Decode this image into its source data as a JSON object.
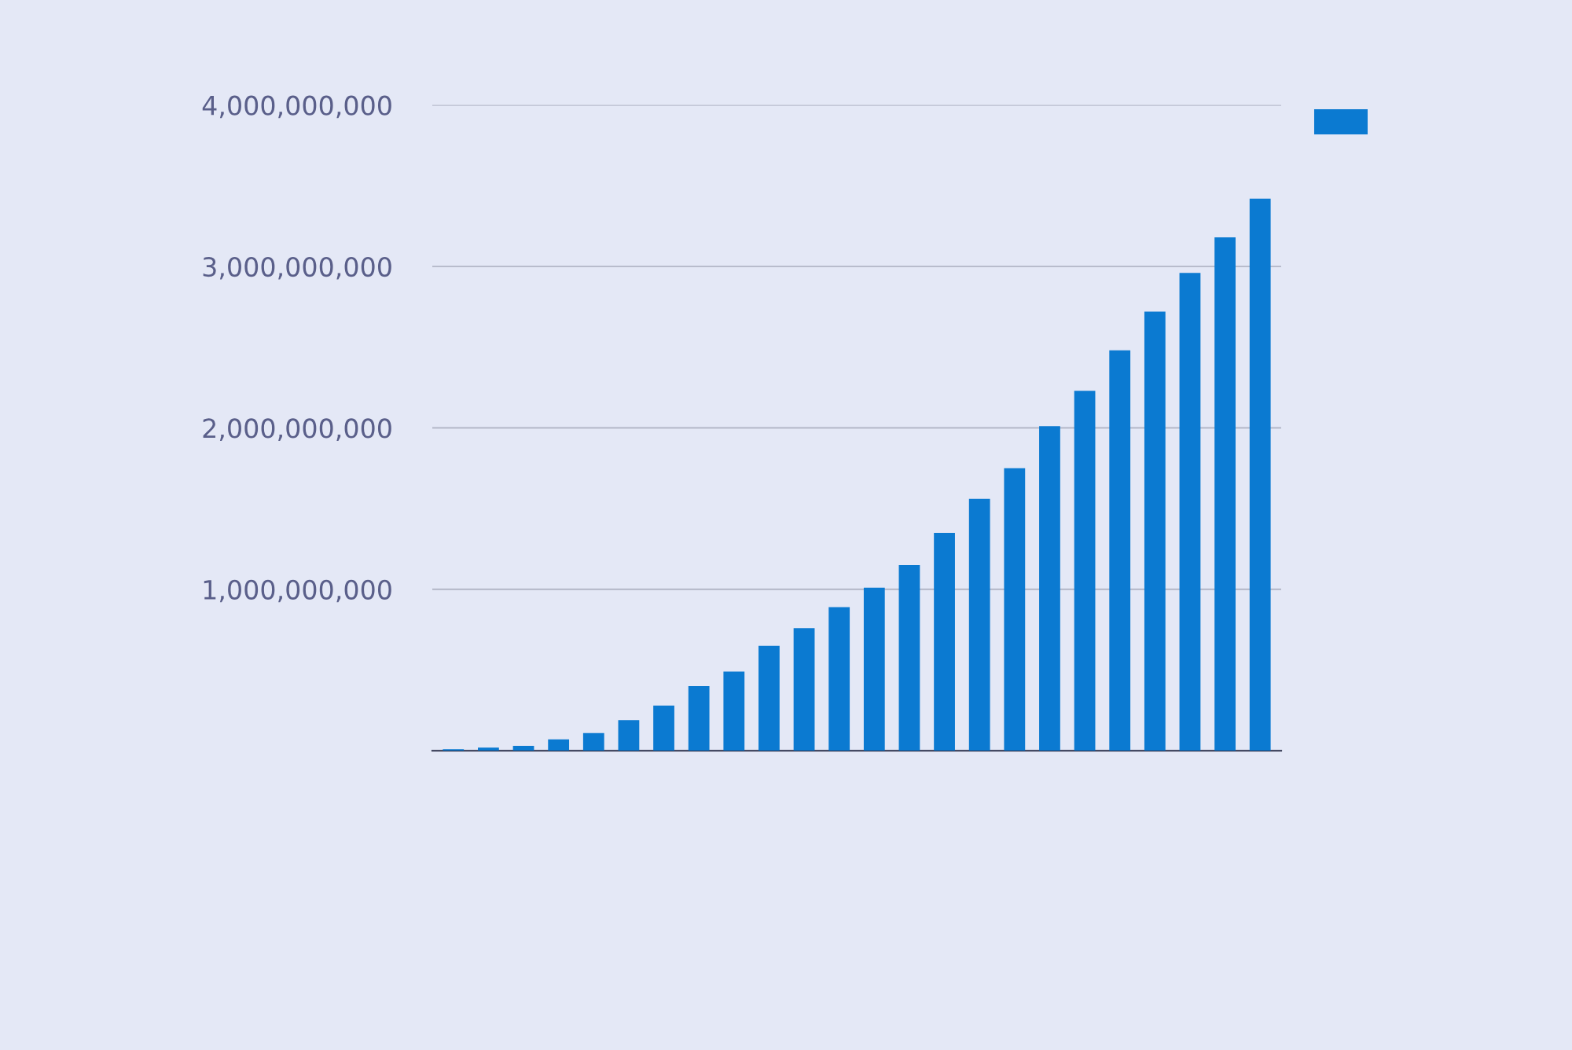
{
  "chart_data": {
    "type": "bar",
    "categories": [
      null,
      null,
      null,
      null,
      null,
      null,
      null,
      null,
      null,
      null,
      null,
      null,
      null,
      null,
      null,
      null,
      null,
      null,
      null,
      null,
      null,
      null,
      null,
      null
    ],
    "series": [
      {
        "color": "#0b7ad1",
        "values": [
          10000000,
          20000000,
          30000000,
          70000000,
          110000000,
          190000000,
          280000000,
          400000000,
          490000000,
          650000000,
          760000000,
          890000000,
          1010000000,
          1150000000,
          1350000000,
          1560000000,
          1750000000,
          2010000000,
          2230000000,
          2480000000,
          2720000000,
          2960000000,
          3180000000,
          3420000000
        ]
      }
    ],
    "ylim": [
      0,
      4000000000
    ],
    "yticks": [
      {
        "value": 1000000000,
        "label": "1,000,000,000"
      },
      {
        "value": 2000000000,
        "label": "2,000,000,000"
      },
      {
        "value": 3000000000,
        "label": "3,000,000,000"
      },
      {
        "value": 4000000000,
        "label": "4,000,000,000"
      }
    ],
    "grid": "y"
  }
}
